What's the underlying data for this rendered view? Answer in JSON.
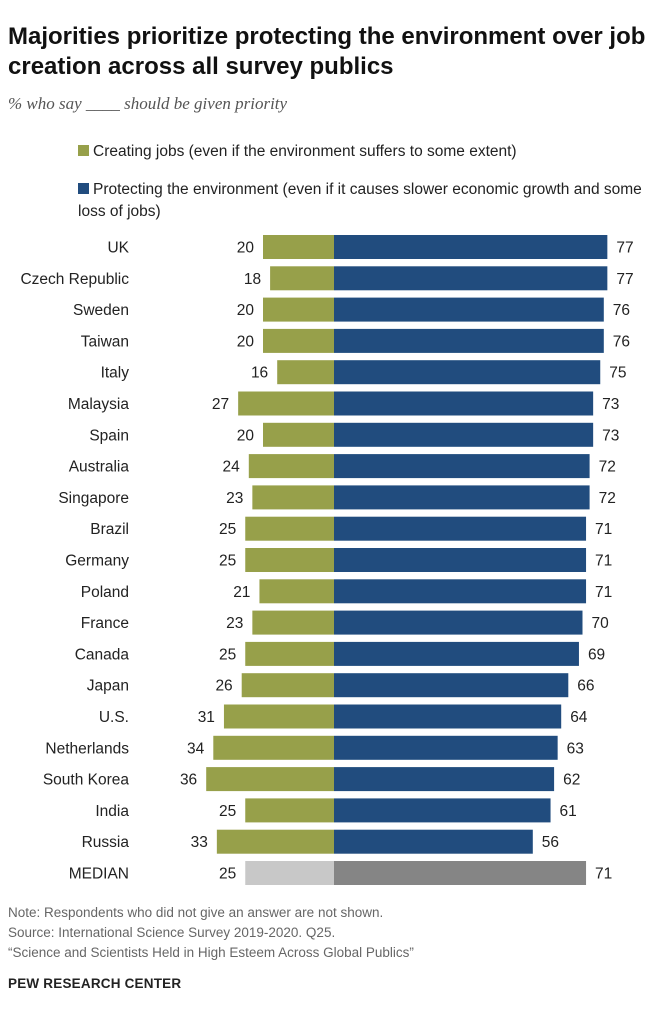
{
  "title": "Majorities prioritize protecting the environment over job creation across all survey publics",
  "subtitle": "% who say ____ should be given priority",
  "legend": {
    "jobs": "Creating jobs (even if the environment suffers to some extent)",
    "environment": "Protecting the environment (even if it causes slower economic growth and some loss of jobs)"
  },
  "colors": {
    "jobs": "#97a04a",
    "environment": "#214c7e",
    "median_jobs": "#c8c8c8",
    "median_environment": "#858585"
  },
  "chart_data": {
    "type": "bar",
    "orientation": "horizontal-diverging",
    "categories": [
      "UK",
      "Czech Republic",
      "Sweden",
      "Taiwan",
      "Italy",
      "Malaysia",
      "Spain",
      "Australia",
      "Singapore",
      "Brazil",
      "Germany",
      "Poland",
      "France",
      "Canada",
      "Japan",
      "U.S.",
      "Netherlands",
      "South Korea",
      "India",
      "Russia",
      "MEDIAN"
    ],
    "series": [
      {
        "name": "Creating jobs (even if the environment suffers to some extent)",
        "key": "jobs",
        "values": [
          20,
          18,
          20,
          20,
          16,
          27,
          20,
          24,
          23,
          25,
          25,
          21,
          23,
          25,
          26,
          31,
          34,
          36,
          25,
          33,
          25
        ]
      },
      {
        "name": "Protecting the environment (even if it causes slower economic growth and some loss of jobs)",
        "key": "environment",
        "values": [
          77,
          77,
          76,
          76,
          75,
          73,
          73,
          72,
          72,
          71,
          71,
          71,
          70,
          69,
          66,
          64,
          63,
          62,
          61,
          56,
          71
        ]
      }
    ],
    "highlight_category": "MEDIAN",
    "title": "Majorities prioritize protecting the environment over job creation across all survey publics",
    "xlabel": "",
    "ylabel": "",
    "xlim": [
      0,
      100
    ]
  },
  "footer": {
    "note": "Note: Respondents who did not give an answer are not shown.",
    "source": "Source: International Science Survey 2019-2020. Q25.",
    "report": "“Science and Scientists Held in High Esteem Across Global Publics”",
    "brand": "PEW RESEARCH CENTER"
  }
}
